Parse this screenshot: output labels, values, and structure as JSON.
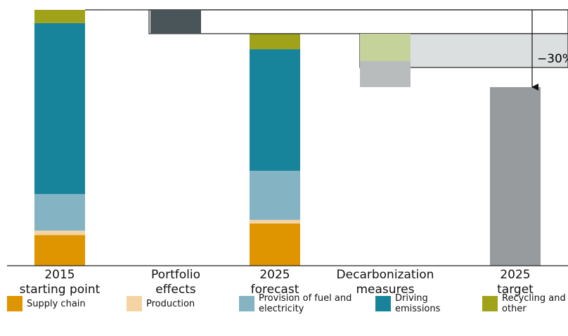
{
  "chart_data": {
    "type": "waterfall",
    "categories": [
      [
        "2015",
        "starting point"
      ],
      [
        "Portfolio",
        "effects"
      ],
      [
        "2025",
        "forecast"
      ],
      [
        "Decarbonization",
        "measures"
      ],
      [
        "2025",
        "target"
      ]
    ],
    "ylim": [
      0,
      100
    ],
    "series": [
      {
        "name": "Supply chain",
        "color": "#de9500",
        "values": [
          12,
          null,
          16.5,
          null,
          null
        ]
      },
      {
        "name": "Production",
        "color": "#f5d4a4",
        "values": [
          1.7,
          null,
          1.4,
          null,
          null
        ]
      },
      {
        "name": "Provision of fuel and electricity",
        "color": "#84b3c4",
        "values": [
          14.3,
          null,
          19.2,
          null,
          null
        ]
      },
      {
        "name": "Driving emissions",
        "color": "#17849c",
        "values": [
          66.8,
          null,
          47.5,
          null,
          null
        ]
      },
      {
        "name": "Recycling and other",
        "color": "#a0a319",
        "values": [
          5.2,
          null,
          6.1,
          null,
          null
        ]
      }
    ],
    "portfolio_effect": {
      "value": -9.3,
      "color": "#4a5559"
    },
    "decarbonization": {
      "values": [
        -10.7,
        -10.2
      ],
      "colors": [
        "#c5d39b",
        "#b8bcbd"
      ]
    },
    "target": {
      "value": 69.8,
      "color": "#979b9e"
    },
    "annotation": "−30%"
  }
}
